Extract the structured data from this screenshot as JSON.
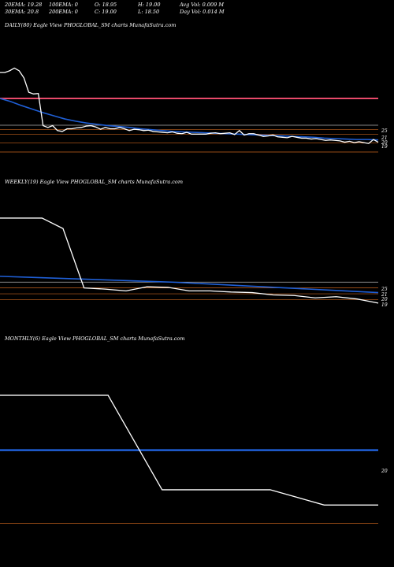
{
  "stats": {
    "ema20": "20EMA: 19.28",
    "ema100": "100EMA: 0",
    "open": "O: 18.95",
    "high": "H: 19.00",
    "avg_vol": "Avg Vol: 0.009 M",
    "ema30": "30EMA: 20.8",
    "ema200": "200EMA: 0",
    "close": "C: 19.00",
    "low": "L: 18.50",
    "day_vol": "Day Vol: 0.014  M"
  },
  "colors": {
    "background": "#000000",
    "price_line": "#ffffff",
    "ema_line": "#1f5fd6",
    "ema_alt_line": "#e84a6a",
    "level_line": "#c8641e",
    "level_line_light": "#b0b0b0"
  },
  "chart_data": [
    {
      "type": "line",
      "title": "DAILY(80) Eagle  View  PHOGLOBAL_SM charts MunafaSutra.com",
      "ylim": [
        16,
        46
      ],
      "price": [
        36.8,
        36.8,
        37.2,
        37.8,
        37.2,
        35.6,
        32.4,
        32,
        32.1,
        24.9,
        24.5,
        24.9,
        23.8,
        23.6,
        24.2,
        24.2,
        24.4,
        24.5,
        24.8,
        24.9,
        24.6,
        24.1,
        24.5,
        24.2,
        24.2,
        24.5,
        24.2,
        23.8,
        24.1,
        24,
        23.8,
        23.9,
        23.6,
        23.5,
        23.4,
        23.3,
        23.5,
        23.2,
        23.1,
        23.4,
        23,
        23,
        23,
        23,
        23.2,
        23.3,
        23.1,
        23.2,
        23.3,
        22.9,
        23.8,
        22.8,
        23.1,
        23.1,
        22.8,
        22.5,
        22.6,
        22.8,
        22.4,
        22.3,
        22.2,
        22.5,
        22.3,
        22.1,
        22.1,
        21.9,
        22,
        21.8,
        21.6,
        21.7,
        21.6,
        21.5,
        21.2,
        21.4,
        21.1,
        21.3,
        21.1,
        20.9,
        21.8,
        21.2
      ],
      "ema_blue": [
        31,
        30.3,
        29.4,
        28.6,
        27.8,
        27.1,
        26.4,
        25.9,
        25.5,
        25.2,
        24.9,
        24.7,
        24.5,
        24.2,
        24,
        23.8,
        23.6,
        23.5,
        23.4,
        23.3,
        23.2,
        23.1,
        23,
        22.9,
        22.8,
        22.7,
        22.6,
        22.5,
        22.4,
        22.3,
        22.1,
        22,
        21.9,
        21.8,
        21.8,
        21.7
      ],
      "ema_alt": [
        31,
        31,
        31,
        31,
        31,
        31,
        31,
        31,
        31,
        31,
        31,
        31,
        31,
        31,
        31,
        31,
        31,
        31,
        31,
        31,
        31,
        31,
        31,
        31,
        31,
        31,
        31,
        31,
        31,
        31,
        31,
        31,
        31,
        31,
        31,
        31
      ],
      "levels": [
        25,
        24,
        23,
        21,
        19
      ],
      "level_labels": [
        "25",
        "21",
        "20",
        "19"
      ]
    },
    {
      "type": "line",
      "title": "WEEKLY(19) Eagle  View  PHOGLOBAL_SM charts MunafaSutra.com",
      "ylim": [
        18,
        41
      ],
      "price": [
        36,
        36,
        36,
        34.2,
        24,
        23.8,
        23.5,
        24.2,
        24.1,
        23.5,
        23.5,
        23.3,
        23.2,
        22.8,
        22.7,
        22.3,
        22.5,
        22.1,
        21.4
      ],
      "ema_blue": [
        26,
        25.8,
        25.6,
        25.4,
        25.2,
        25,
        24.7,
        24.4,
        24.1,
        23.8,
        23.5,
        23.2
      ],
      "levels": [
        25,
        24,
        23,
        22
      ],
      "level_labels": [
        "25",
        "21",
        "20",
        "19"
      ]
    },
    {
      "type": "line",
      "title": "MONTHLY(6) Eagle  View  PHOGLOBAL_SM charts MunafaSutra.com",
      "ylim": [
        17,
        48
      ],
      "price": [
        40,
        40,
        40,
        24.5,
        24.5,
        24.5,
        22,
        22
      ],
      "ema_blue": [
        31,
        31
      ],
      "levels": [
        19
      ],
      "level_labels": [
        "20"
      ]
    }
  ]
}
